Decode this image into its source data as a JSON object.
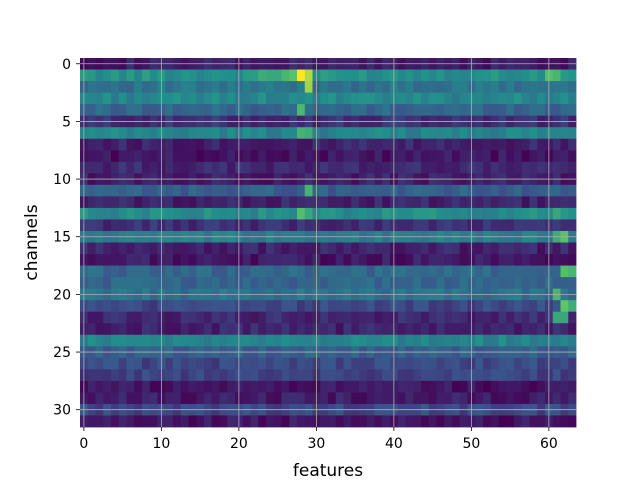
{
  "chart_data": {
    "type": "heatmap",
    "title": "",
    "xlabel": "features",
    "ylabel": "channels",
    "colormap": "viridis",
    "n_cols": 64,
    "n_rows": 32,
    "xlim": [
      -0.5,
      63.5
    ],
    "ylim": [
      31.5,
      -0.5
    ],
    "x_ticks": [
      0,
      10,
      20,
      30,
      40,
      50,
      60
    ],
    "y_ticks": [
      0,
      5,
      10,
      15,
      20,
      25,
      30
    ],
    "grid": true,
    "grid_color": "#b0b0b0",
    "value_range": [
      0,
      1
    ],
    "row_base": [
      0.08,
      0.5,
      0.38,
      0.46,
      0.33,
      0.14,
      0.45,
      0.1,
      0.06,
      0.12,
      0.09,
      0.3,
      0.1,
      0.48,
      0.14,
      0.42,
      0.1,
      0.07,
      0.33,
      0.32,
      0.38,
      0.22,
      0.12,
      0.1,
      0.45,
      0.3,
      0.22,
      0.2,
      0.06,
      0.08,
      0.22,
      0.06
    ],
    "hot_cells": [
      {
        "row": 1,
        "col": 28,
        "value": 1.0
      },
      {
        "row": 1,
        "col": 29,
        "value": 0.88
      },
      {
        "row": 2,
        "col": 29,
        "value": 0.85
      },
      {
        "row": 1,
        "col": 27,
        "value": 0.72
      },
      {
        "row": 1,
        "col": 26,
        "value": 0.66
      },
      {
        "row": 1,
        "col": 23,
        "value": 0.62
      },
      {
        "row": 1,
        "col": 24,
        "value": 0.6
      },
      {
        "row": 1,
        "col": 25,
        "value": 0.6
      },
      {
        "row": 1,
        "col": 60,
        "value": 0.7
      },
      {
        "row": 1,
        "col": 61,
        "value": 0.66
      },
      {
        "row": 4,
        "col": 28,
        "value": 0.68
      },
      {
        "row": 6,
        "col": 28,
        "value": 0.65
      },
      {
        "row": 6,
        "col": 29,
        "value": 0.62
      },
      {
        "row": 11,
        "col": 29,
        "value": 0.65
      },
      {
        "row": 13,
        "col": 28,
        "value": 0.7
      },
      {
        "row": 13,
        "col": 29,
        "value": 0.6
      },
      {
        "row": 13,
        "col": 61,
        "value": 0.6
      },
      {
        "row": 15,
        "col": 61,
        "value": 0.62
      },
      {
        "row": 15,
        "col": 62,
        "value": 0.72
      },
      {
        "row": 18,
        "col": 62,
        "value": 0.7
      },
      {
        "row": 18,
        "col": 63,
        "value": 0.66
      },
      {
        "row": 20,
        "col": 61,
        "value": 0.66
      },
      {
        "row": 21,
        "col": 62,
        "value": 0.74
      },
      {
        "row": 21,
        "col": 63,
        "value": 0.62
      },
      {
        "row": 22,
        "col": 61,
        "value": 0.6
      },
      {
        "row": 22,
        "col": 62,
        "value": 0.6
      }
    ]
  }
}
